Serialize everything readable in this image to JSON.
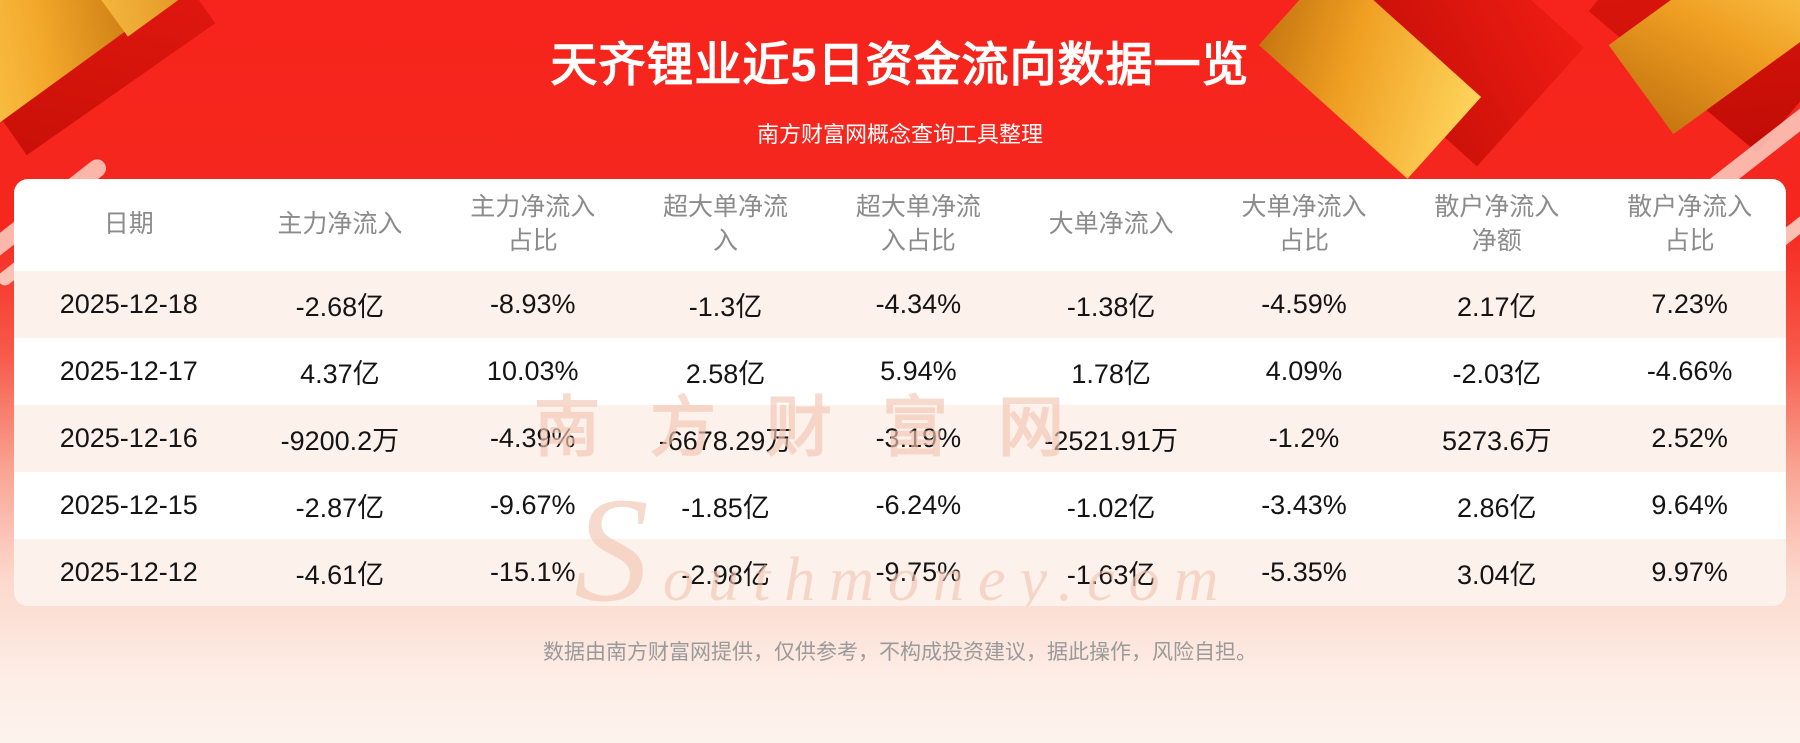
{
  "chart_data": {
    "type": "table",
    "title": "天齐锂业近5日资金流向数据一览",
    "subtitle": "南方财富网概念查询工具整理",
    "columns": [
      "日期",
      "主力净流入",
      "主力净流入占比",
      "超大单净流入",
      "超大单净流入占比",
      "大单净流入",
      "大单净流入占比",
      "散户净流入净额",
      "散户净流入占比"
    ],
    "rows": [
      [
        "2025-12-18",
        "-2.68亿",
        "-8.93%",
        "-1.3亿",
        "-4.34%",
        "-1.38亿",
        "-4.59%",
        "2.17亿",
        "7.23%"
      ],
      [
        "2025-12-17",
        "4.37亿",
        "10.03%",
        "2.58亿",
        "5.94%",
        "1.78亿",
        "4.09%",
        "-2.03亿",
        "-4.66%"
      ],
      [
        "2025-12-16",
        "-9200.2万",
        "-4.39%",
        "-6678.29万",
        "-3.19%",
        "-2521.91万",
        "-1.2%",
        "5273.6万",
        "2.52%"
      ],
      [
        "2025-12-15",
        "-2.87亿",
        "-9.67%",
        "-1.85亿",
        "-6.24%",
        "-1.02亿",
        "-3.43%",
        "2.86亿",
        "9.64%"
      ],
      [
        "2025-12-12",
        "-4.61亿",
        "-15.1%",
        "-2.98亿",
        "-9.75%",
        "-1.63亿",
        "-5.35%",
        "3.04亿",
        "9.97%"
      ]
    ]
  },
  "watermark": {
    "cn": "南方财富网",
    "en": "Southmoney.com"
  },
  "footer": {
    "disclaimer": "数据由南方财富网提供，仅供参考，不构成投资建议，据此操作，风险自担。"
  },
  "colors": {
    "banner_red": "#f5241c",
    "gold_ribbon": "#efa93d",
    "row_alt_pink": "#fdf1ec",
    "header_text": "#8b8b8b",
    "body_text": "#141414",
    "footer_text": "#9a9a9a",
    "watermark": "#f3c6b4"
  }
}
